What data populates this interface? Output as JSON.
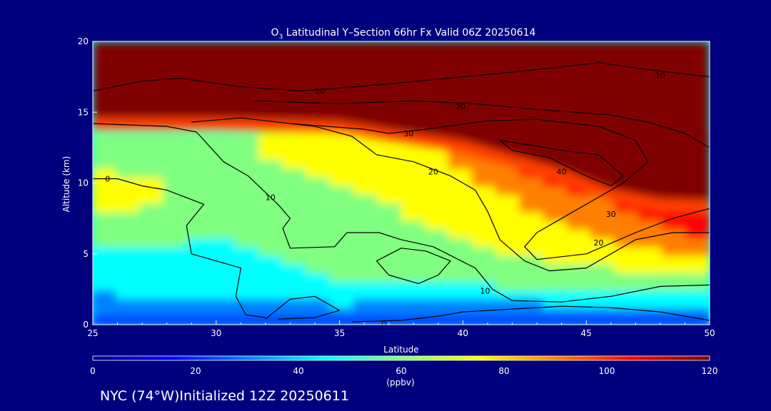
{
  "chart_data": {
    "type": "heatmap",
    "title": {
      "prefix": "O",
      "subscript": "3",
      "rest": " Latitudinal Y–Section 66hr  Fx Valid 06Z 20250614"
    },
    "xlabel": "Latitude",
    "ylabel": "Altitude (km)",
    "xlim": [
      25,
      50
    ],
    "ylim": [
      0,
      20
    ],
    "x_ticks": [
      25,
      30,
      35,
      40,
      45,
      50
    ],
    "y_ticks": [
      0,
      5,
      10,
      15,
      20
    ],
    "colorbar": {
      "min": 0,
      "max": 120,
      "ticks": [
        0,
        20,
        40,
        60,
        80,
        100,
        120
      ],
      "unit": "(ppbv)",
      "colors": [
        "#00008f",
        "#0000ff",
        "#0080ff",
        "#00ffff",
        "#80ff80",
        "#ffff00",
        "#ff8000",
        "#ff0000",
        "#800000"
      ]
    },
    "heat_field": {
      "note_units": "latitude (deg N), altitude (km), ozone (ppbv)",
      "tropopause_altitude_km": [
        [
          25,
          14.6
        ],
        [
          30,
          14.6
        ],
        [
          35,
          14.4
        ],
        [
          37,
          13.8
        ],
        [
          40,
          13.0
        ],
        [
          42,
          12.0
        ],
        [
          44,
          11.0
        ],
        [
          46,
          9.6
        ],
        [
          48,
          8.9
        ],
        [
          50,
          8.8
        ]
      ],
      "layers_ppbv_by_altitude": [
        {
          "alt": 0.3,
          "lat": [
            25,
            30,
            35,
            40,
            45,
            50
          ],
          "o3": [
            12,
            12,
            14,
            8,
            10,
            15
          ]
        },
        {
          "alt": 1.2,
          "lat": [
            25,
            30,
            35,
            40,
            45,
            50
          ],
          "o3": [
            28,
            30,
            35,
            30,
            35,
            40
          ]
        },
        {
          "alt": 3.0,
          "lat": [
            25,
            30,
            35,
            40,
            45,
            50
          ],
          "o3": [
            45,
            48,
            52,
            55,
            58,
            62
          ]
        },
        {
          "alt": 6.0,
          "lat": [
            25,
            30,
            35,
            40,
            45,
            50
          ],
          "o3": [
            55,
            52,
            58,
            68,
            80,
            100
          ]
        },
        {
          "alt": 9.0,
          "lat": [
            25,
            30,
            35,
            40,
            45,
            50
          ],
          "o3": [
            78,
            62,
            65,
            75,
            95,
            115
          ]
        },
        {
          "alt": 12.0,
          "lat": [
            25,
            30,
            35,
            40,
            45,
            50
          ],
          "o3": [
            62,
            65,
            72,
            85,
            125,
            130
          ]
        }
      ]
    },
    "contours": [
      {
        "label": "0",
        "label_at": [
          25.6,
          10.3
        ],
        "points": [
          [
            25,
            10.3
          ],
          [
            26,
            10.3
          ],
          [
            27,
            9.8
          ],
          [
            28,
            9.5
          ],
          [
            29.5,
            8.5
          ],
          [
            28.8,
            7.0
          ],
          [
            29.0,
            5.0
          ],
          [
            31.0,
            4.0
          ],
          [
            30.8,
            2.0
          ],
          [
            31.2,
            0.7
          ],
          [
            32.0,
            0.5
          ]
        ]
      },
      {
        "label": "0",
        "label_at": [
          36.8,
          0.1
        ],
        "points": [
          [
            35.5,
            0.2
          ],
          [
            37.5,
            0.3
          ],
          [
            39.0,
            0.6
          ],
          [
            40.0,
            0.9
          ],
          [
            42.0,
            1.1
          ],
          [
            44.0,
            1.3
          ],
          [
            46.0,
            1.2
          ],
          [
            48.0,
            0.9
          ],
          [
            50.0,
            0.3
          ]
        ]
      },
      {
        "label": "",
        "label_at": null,
        "points": [
          [
            32.0,
            0.4
          ],
          [
            33.0,
            1.8
          ],
          [
            34.0,
            2.0
          ],
          [
            35.0,
            1.0
          ],
          [
            34.0,
            0.5
          ],
          [
            32.5,
            0.4
          ]
        ]
      },
      {
        "label": "10",
        "label_at": [
          32.2,
          9.0
        ],
        "points": [
          [
            25,
            14.2
          ],
          [
            28,
            14.0
          ],
          [
            29.2,
            13.6
          ],
          [
            30.3,
            11.5
          ],
          [
            31.3,
            10.5
          ],
          [
            32.5,
            8.5
          ],
          [
            33.0,
            7.5
          ],
          [
            32.7,
            6.8
          ],
          [
            33.0,
            5.4
          ],
          [
            34.8,
            5.5
          ],
          [
            35.3,
            6.5
          ],
          [
            36.6,
            6.5
          ],
          [
            37.5,
            6.0
          ],
          [
            38.8,
            5.5
          ],
          [
            40.5,
            4.0
          ],
          [
            41.2,
            2.5
          ],
          [
            42.0,
            1.7
          ],
          [
            44.0,
            1.6
          ],
          [
            46.0,
            2.0
          ],
          [
            48.0,
            2.7
          ],
          [
            50.0,
            2.8
          ]
        ]
      },
      {
        "label": "10",
        "label_at": [
          34.2,
          16.5
        ],
        "points": [
          [
            25,
            16.5
          ],
          [
            27.0,
            17.2
          ],
          [
            28.5,
            17.4
          ],
          [
            31.0,
            16.8
          ],
          [
            33.5,
            16.5
          ],
          [
            37.0,
            17.0
          ],
          [
            40.0,
            17.5
          ],
          [
            43.0,
            18.0
          ],
          [
            45.5,
            18.5
          ],
          [
            47.5,
            18.0
          ],
          [
            50.0,
            17.5
          ]
        ]
      },
      {
        "label": "10",
        "label_at": [
          48.0,
          17.6
        ],
        "points": []
      },
      {
        "label": "10",
        "label_at": [
          40.9,
          2.4
        ],
        "points": [
          [
            36.5,
            4.5
          ],
          [
            37.0,
            3.5
          ],
          [
            38.2,
            2.9
          ],
          [
            39.0,
            3.5
          ],
          [
            39.5,
            4.5
          ],
          [
            38.5,
            5.2
          ],
          [
            37.5,
            5.4
          ],
          [
            36.5,
            4.5
          ]
        ]
      },
      {
        "label": "20",
        "label_at": [
          38.8,
          10.8
        ],
        "points": [
          [
            29.0,
            14.3
          ],
          [
            31.0,
            14.6
          ],
          [
            34.0,
            14.0
          ],
          [
            35.5,
            13.3
          ],
          [
            36.5,
            12.0
          ],
          [
            38.0,
            11.5
          ],
          [
            39.5,
            10.5
          ],
          [
            40.5,
            9.5
          ],
          [
            41.0,
            8.0
          ],
          [
            41.5,
            6.0
          ],
          [
            42.5,
            4.5
          ],
          [
            43.5,
            3.8
          ],
          [
            45.0,
            4.0
          ],
          [
            46.0,
            5.0
          ],
          [
            47.0,
            6.0
          ],
          [
            48.5,
            6.5
          ],
          [
            50.0,
            6.5
          ]
        ]
      },
      {
        "label": "20",
        "label_at": [
          39.9,
          15.4
        ],
        "points": [
          [
            31.5,
            15.8
          ],
          [
            35.0,
            15.6
          ],
          [
            38.0,
            15.8
          ],
          [
            40.5,
            15.6
          ],
          [
            43.0,
            15.2
          ],
          [
            46.0,
            14.8
          ],
          [
            47.5,
            14.3
          ],
          [
            49.0,
            13.5
          ],
          [
            50.0,
            12.5
          ]
        ]
      },
      {
        "label": "20",
        "label_at": [
          45.5,
          5.8
        ],
        "points": []
      },
      {
        "label": "30",
        "label_at": [
          37.8,
          13.5
        ],
        "points": [
          [
            33.0,
            14.2
          ],
          [
            36.0,
            13.8
          ],
          [
            37.0,
            13.5
          ],
          [
            38.5,
            13.8
          ],
          [
            41.0,
            14.4
          ],
          [
            43.0,
            14.5
          ],
          [
            45.5,
            14.0
          ],
          [
            47.0,
            13.0
          ],
          [
            47.5,
            11.5
          ],
          [
            46.5,
            10.0
          ],
          [
            45.5,
            9.0
          ],
          [
            44.5,
            8.0
          ],
          [
            43.0,
            6.5
          ],
          [
            42.5,
            5.5
          ],
          [
            43.0,
            4.6
          ],
          [
            45.0,
            5.0
          ],
          [
            47.0,
            6.5
          ],
          [
            48.5,
            7.5
          ],
          [
            50.0,
            8.2
          ]
        ]
      },
      {
        "label": "30",
        "label_at": [
          46.0,
          7.8
        ],
        "points": []
      },
      {
        "label": "40",
        "label_at": [
          44.0,
          10.8
        ],
        "points": [
          [
            41.5,
            13.0
          ],
          [
            43.0,
            12.6
          ],
          [
            44.0,
            12.3
          ],
          [
            45.5,
            12.0
          ],
          [
            46.5,
            10.5
          ],
          [
            46.0,
            9.8
          ],
          [
            45.0,
            10.5
          ],
          [
            43.5,
            11.8
          ],
          [
            42.0,
            12.3
          ],
          [
            41.5,
            13.0
          ]
        ]
      }
    ]
  },
  "footer": {
    "station": "NYC (74°W)Initialized 12Z 20250611"
  }
}
